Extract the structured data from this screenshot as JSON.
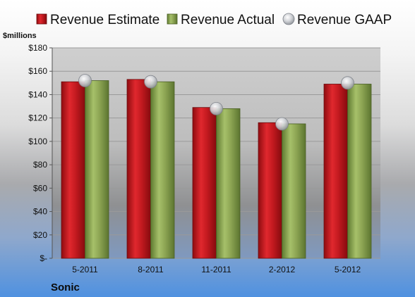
{
  "chart_data": {
    "type": "bar",
    "unit_label": "$millions",
    "company": "Sonic",
    "categories": [
      "5-2011",
      "8-2011",
      "11-2011",
      "2-2012",
      "5-2012"
    ],
    "series": [
      {
        "name": "Revenue Estimate",
        "kind": "bar",
        "color": "#c0141a",
        "values": [
          151,
          153,
          129,
          116,
          149
        ]
      },
      {
        "name": "Revenue Actual",
        "kind": "bar",
        "color": "#8fa956",
        "values": [
          152,
          151,
          128,
          115,
          149
        ]
      },
      {
        "name": "Revenue GAAP",
        "kind": "marker",
        "color": "#b8bcc4",
        "values": [
          152,
          151,
          128,
          115,
          150
        ]
      }
    ],
    "ylim": [
      0,
      180
    ],
    "yticks": [
      0,
      20,
      40,
      60,
      80,
      100,
      120,
      140,
      160,
      180
    ],
    "ytick_labels": [
      "$-",
      "$20",
      "$40",
      "$60",
      "$80",
      "$100",
      "$120",
      "$140",
      "$160",
      "$180"
    ],
    "grid": true,
    "legend_position": "top"
  }
}
